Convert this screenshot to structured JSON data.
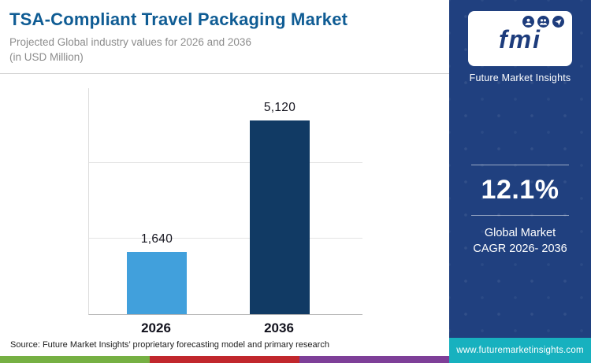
{
  "header": {
    "title": "TSA-Compliant Travel Packaging Market",
    "subtitle_line1": "Projected Global industry values for 2026 and 2036",
    "subtitle_line2": "(in USD Million)"
  },
  "chart_data": {
    "type": "bar",
    "title": "TSA-Compliant Travel Packaging Market",
    "subtitle": "Projected Global industry values for 2026 and 2036 (in USD Million)",
    "categories": [
      "2026",
      "2036"
    ],
    "values": [
      1640,
      5120
    ],
    "value_labels": [
      "1,640",
      "5,120"
    ],
    "xlabel": "",
    "ylabel": "USD Million",
    "ylim": [
      0,
      6000
    ],
    "grid": true,
    "legend": false,
    "bar_colors": [
      "#41a0dc",
      "#113a64"
    ]
  },
  "sidebar": {
    "logo_text": "fmi",
    "logo_icons": [
      "person-search-icon",
      "people-icon",
      "paper-plane-icon"
    ],
    "brand_name": "Future Market Insights",
    "cagr_value": "12.1%",
    "cagr_caption_line1": "Global Market",
    "cagr_caption_line2": "CAGR 2026- 2036",
    "website": "www.futuremarketinsights.com"
  },
  "footer": {
    "source": "Source: Future Market Insights’ proprietary forecasting model and primary research"
  },
  "colors": {
    "title_blue": "#0f5c94",
    "sidebar_blue": "#20407f",
    "accent_teal": "#17b1bf",
    "bar_2026": "#41a0dc",
    "bar_2036": "#113a64",
    "footer_strip": [
      "#76b043",
      "#c1272d",
      "#7e3f98"
    ]
  }
}
